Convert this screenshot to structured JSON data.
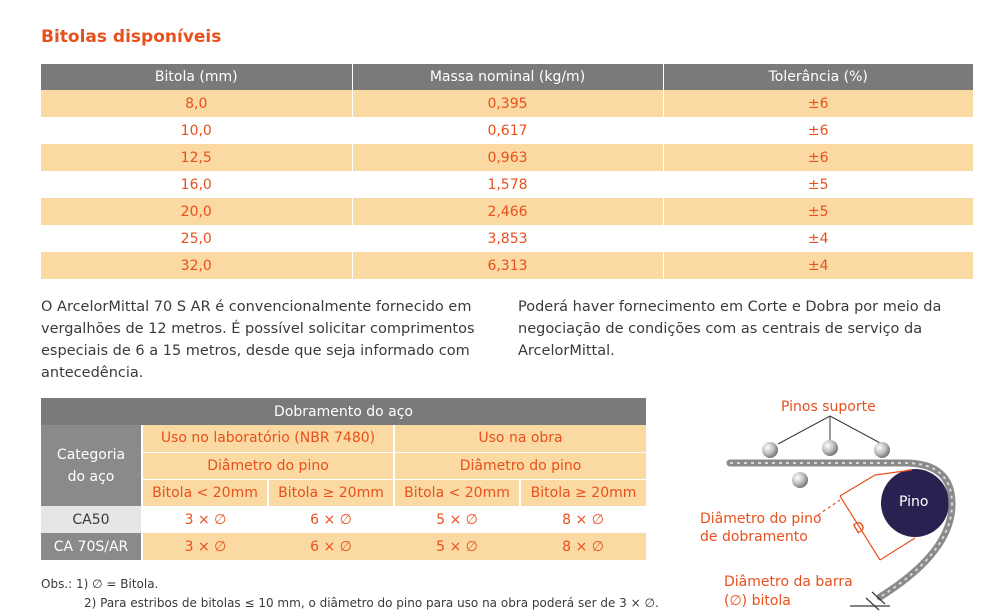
{
  "title": "Bitolas disponíveis",
  "bitolas_table": {
    "headers": [
      "Bitola (mm)",
      "Massa nominal (kg/m)",
      "Tolerância (%)"
    ],
    "rows": [
      [
        "8,0",
        "0,395",
        "±6"
      ],
      [
        "10,0",
        "0,617",
        "±6"
      ],
      [
        "12,5",
        "0,963",
        "±6"
      ],
      [
        "16,0",
        "1,578",
        "±5"
      ],
      [
        "20,0",
        "2,466",
        "±5"
      ],
      [
        "25,0",
        "3,853",
        "±4"
      ],
      [
        "32,0",
        "6,313",
        "±4"
      ]
    ]
  },
  "paragraph_left": "O ArcelorMittal 70 S AR é convencionalmente fornecido em vergalhões de 12 metros. É possível solicitar comprimentos especiais de 6 a 15 metros, desde que seja informado com antecedência.",
  "paragraph_right": "Poderá haver fornecimento em Corte e Dobra por meio da negociação de condições com as centrais de serviço da ArcelorMittal.",
  "dobramento_table": {
    "title": "Dobramento do aço",
    "category_label": "Categoria do aço",
    "group1": "Uso no laboratório (NBR 7480)",
    "group2": "Uso na obra",
    "subheader": "Diâmetro do pino",
    "col_lt": "Bitola < 20mm",
    "col_ge": "Bitola ≥ 20mm",
    "rows": [
      {
        "label": "CA50",
        "values": [
          "3 × ∅",
          "6 × ∅",
          "5 × ∅",
          "8 × ∅"
        ]
      },
      {
        "label": "CA 70S/AR",
        "values": [
          "3 × ∅",
          "6 × ∅",
          "5 × ∅",
          "8 × ∅"
        ]
      }
    ]
  },
  "obs": {
    "line1": "Obs.:  1)  ∅ = Bitola.",
    "line2": "2) Para estribos de bitolas ≤ 10 mm, o diâmetro do pino para uso na obra poderá ser de 3 × ∅."
  },
  "diagram": {
    "label_pinos": "Pinos suporte",
    "label_pino": "Pino",
    "label_diam_pino_1": "Diâmetro do pino",
    "label_diam_pino_2": "de dobramento",
    "label_D": "D",
    "label_diam_barra_1": "Diâmetro da barra",
    "label_diam_barra_2": "(∅) bitola",
    "colors": {
      "accent": "#e8501c",
      "pino": "#2a2150",
      "bar": "#9a9a9a"
    }
  }
}
